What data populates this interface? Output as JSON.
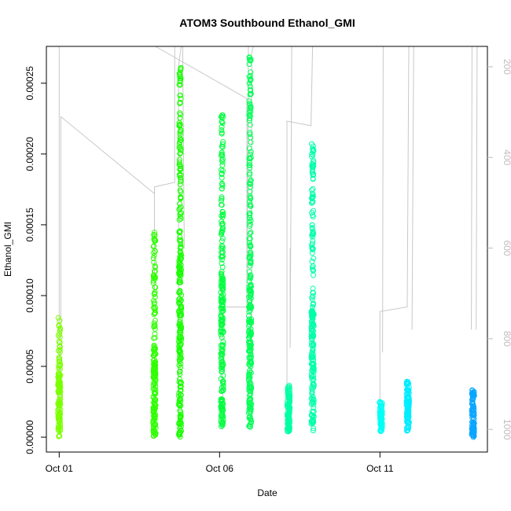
{
  "chart_data": {
    "type": "scatter",
    "title": "ATOM3 Southbound Ethanol_GMI",
    "xlabel": "Date",
    "ylabel": "Ethanol_GMI",
    "x_ticks": [
      "Oct 01",
      "Oct 06",
      "Oct 11"
    ],
    "x_tick_values": [
      1,
      6,
      11
    ],
    "xlim": [
      0.6,
      14.35
    ],
    "ylim": [
      -1.05e-05,
      0.000276
    ],
    "y_ticks": [
      "0.00000",
      "0.00005",
      "0.00010",
      "0.00015",
      "0.00020",
      "0.00025"
    ],
    "y_tick_values": [
      0,
      5e-05,
      0.0001,
      0.00015,
      0.0002,
      0.00025
    ],
    "y2_label": "",
    "y2_ticks": [
      "200",
      "400",
      "600",
      "800",
      "1000"
    ],
    "y2_tick_values": [
      200,
      400,
      600,
      800,
      1000
    ],
    "y2_lim": [
      1050,
      155
    ],
    "y2_reversed": true,
    "grid": false,
    "legend": "none",
    "series": [
      {
        "x": 1.0,
        "ymin": 0.0,
        "ymax": 8.5e-05,
        "dense_max": 5.5e-05,
        "color": "#7cff00"
      },
      {
        "x": 3.97,
        "ymin": 0.0,
        "ymax": 0.000148,
        "dense_max": 6.4e-05,
        "color": "#2eff00"
      },
      {
        "x": 4.77,
        "ymin": 0.0,
        "ymax": 0.000265,
        "dense_max": 0.00013,
        "color": "#18ff00"
      },
      {
        "x": 6.08,
        "ymin": 6e-06,
        "ymax": 0.000228,
        "dense_max": 0.000115,
        "color": "#00ff3e"
      },
      {
        "x": 6.95,
        "ymin": 6e-06,
        "ymax": 0.00027,
        "dense_max": 0.00011,
        "color": "#00ff55"
      },
      {
        "x": 8.15,
        "ymin": 4e-06,
        "ymax": 3.7e-05,
        "dense_max": 3.7e-05,
        "color": "#00ffa4"
      },
      {
        "x": 8.9,
        "ymin": 4e-06,
        "ymax": 0.000208,
        "dense_max": 9e-05,
        "color": "#00ffaa"
      },
      {
        "x": 11.03,
        "ymin": 4e-06,
        "ymax": 2.5e-05,
        "dense_max": 2.5e-05,
        "color": "#00fff4"
      },
      {
        "x": 11.87,
        "ymin": 4e-06,
        "ymax": 4e-05,
        "dense_max": 4e-05,
        "color": "#00ecff"
      },
      {
        "x": 13.9,
        "ymin": 0.0,
        "ymax": 3.4e-05,
        "dense_max": 3.4e-05,
        "color": "#0aa6ff"
      }
    ],
    "altitude_trace": {
      "color": "#c8c8c8",
      "segments": [
        [
          [
            1.0,
            1000
          ],
          [
            1.0,
            500
          ],
          [
            1.0,
            90
          ]
        ],
        [
          [
            1.05,
            1000
          ],
          [
            1.05,
            310
          ],
          [
            3.97,
            480
          ],
          [
            3.97,
            700
          ],
          [
            3.97,
            465
          ],
          [
            4.6,
            455
          ],
          [
            4.6,
            90
          ]
        ],
        [
          [
            4.72,
            1000
          ],
          [
            4.72,
            200
          ],
          [
            4.8,
            150
          ],
          [
            4.85,
            130
          ],
          [
            4.9,
            600
          ]
        ],
        [
          [
            4.0,
            140
          ],
          [
            6.85,
            270
          ],
          [
            6.85,
            730
          ],
          [
            6.9,
            90
          ]
        ],
        [
          [
            6.1,
            1000
          ],
          [
            6.1,
            730
          ],
          [
            6.9,
            730
          ]
        ],
        [
          [
            7.0,
            1000
          ],
          [
            7.0,
            170
          ],
          [
            7.05,
            90
          ]
        ],
        [
          [
            8.1,
            1000
          ],
          [
            8.1,
            320
          ],
          [
            8.85,
            330
          ],
          [
            8.9,
            90
          ]
        ],
        [
          [
            8.2,
            600
          ],
          [
            8.2,
            820
          ],
          [
            8.25,
            90
          ]
        ],
        [
          [
            11.0,
            1000
          ],
          [
            11.0,
            740
          ],
          [
            11.85,
            730
          ],
          [
            11.9,
            90
          ]
        ],
        [
          [
            11.08,
            830
          ],
          [
            11.1,
            90
          ]
        ],
        [
          [
            12.0,
            780
          ],
          [
            12.05,
            90
          ]
        ],
        [
          [
            13.85,
            780
          ],
          [
            13.87,
            90
          ]
        ],
        [
          [
            14.0,
            780
          ],
          [
            14.03,
            90
          ]
        ]
      ]
    }
  }
}
